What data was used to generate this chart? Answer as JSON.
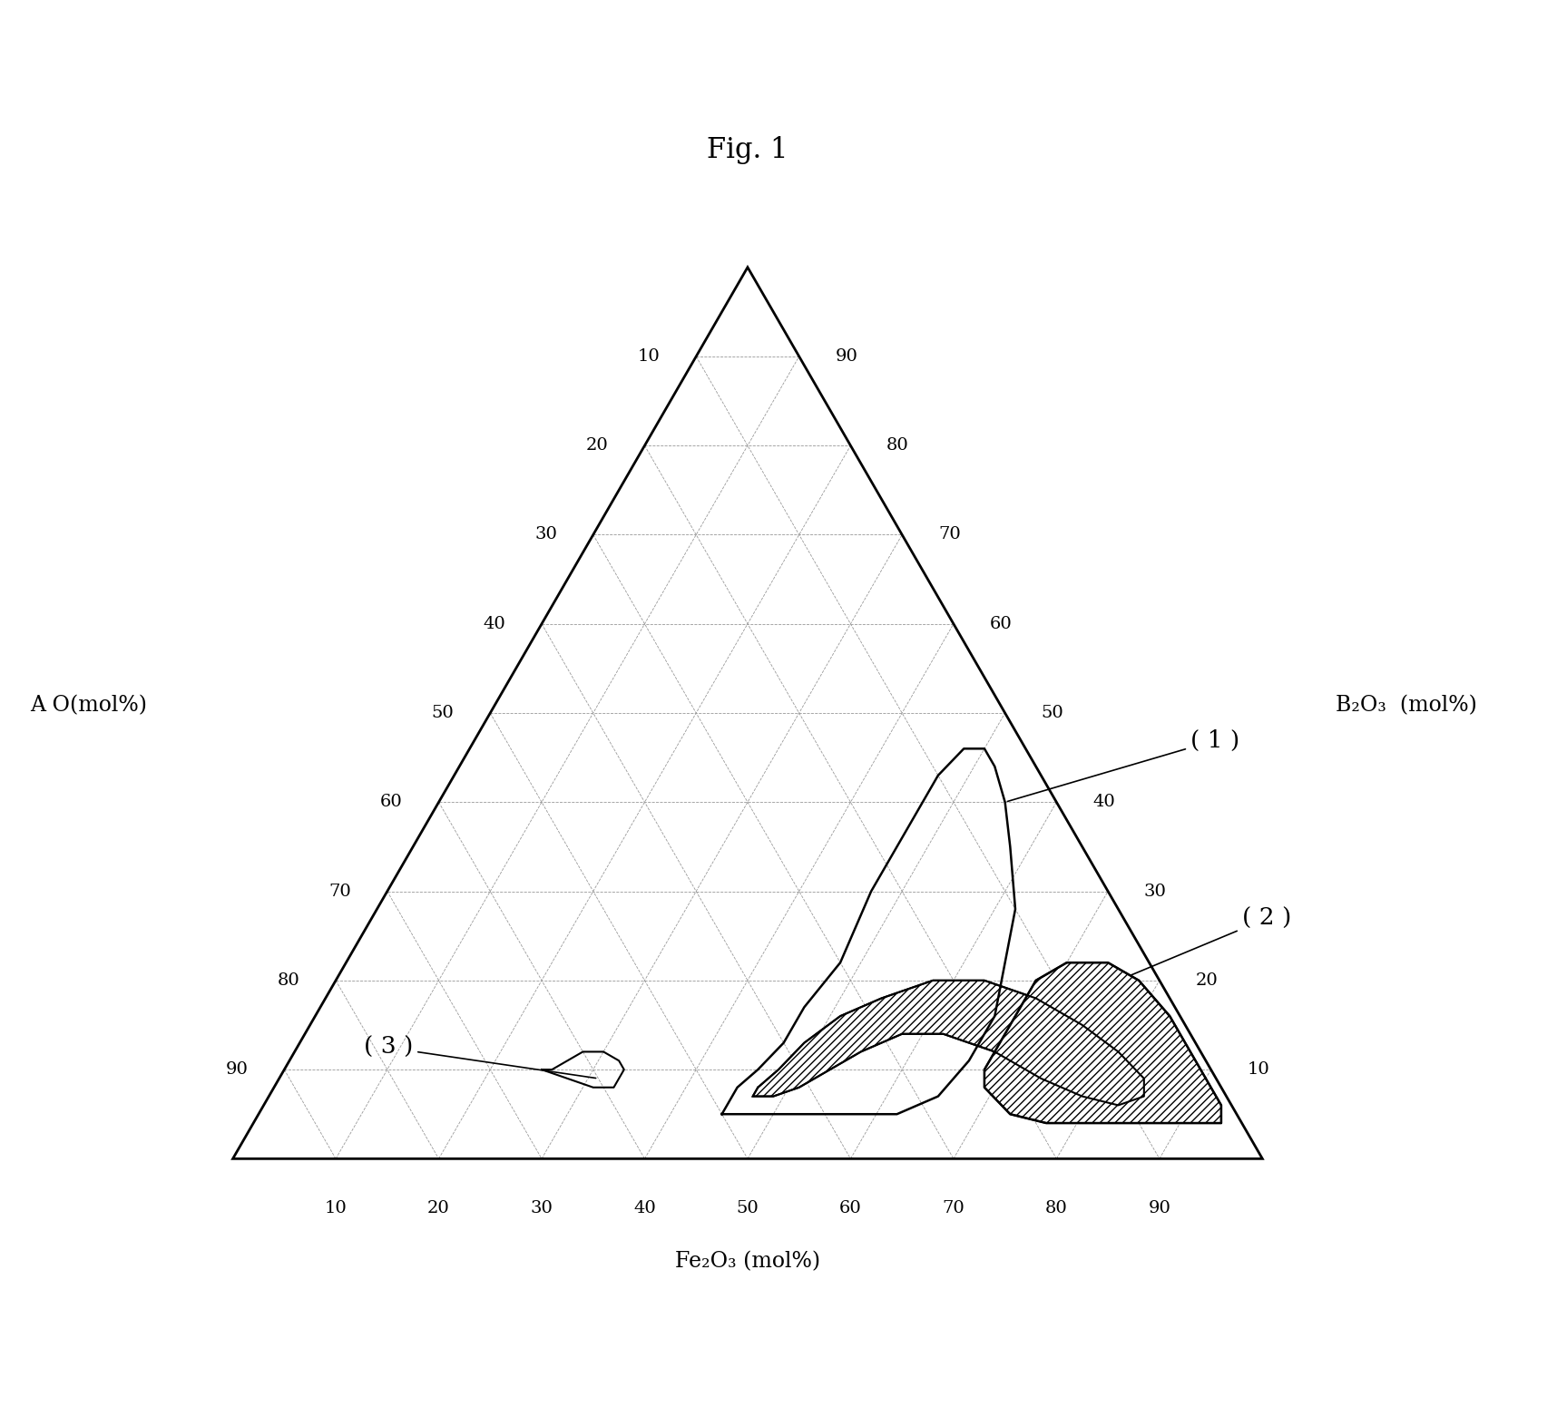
{
  "title": "Fig. 1",
  "corner_labels": {
    "left": "A O(mol%)",
    "right": "B₂O₃  (mol%)",
    "bottom": "Fe₂O₃ (mol%)"
  },
  "tick_values": [
    10,
    20,
    30,
    40,
    50,
    60,
    70,
    80,
    90
  ],
  "grid_color": "#999999",
  "grid_lw": 0.6,
  "triangle_color": "#000000",
  "triangle_lw": 2.0,
  "background_color": "#ffffff",
  "region1_label": "( 1 )",
  "region2_label": "( 2 )",
  "region3_label": "( 3 )",
  "region1_color": "#000000",
  "region2_color": "#000000",
  "region3_color": "#000000",
  "figsize": [
    17.16,
    15.72
  ],
  "dpi": 100
}
